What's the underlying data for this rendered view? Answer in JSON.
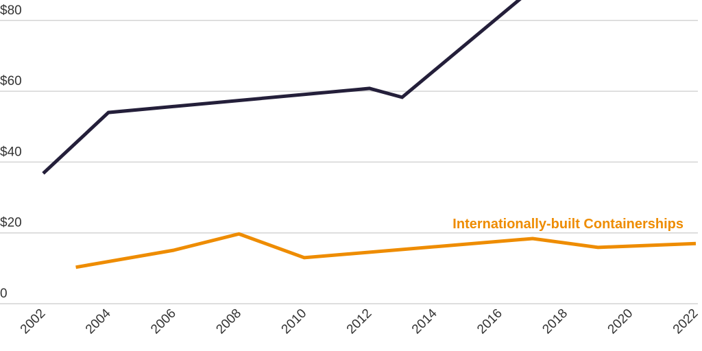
{
  "chart_data": {
    "type": "line",
    "title": "",
    "xlabel": "",
    "ylabel": "",
    "xlim": [
      2002,
      2022
    ],
    "ylim": [
      0,
      85
    ],
    "grid": true,
    "y_ticks": [
      0,
      20,
      40,
      60,
      80
    ],
    "y_tick_labels": [
      "0",
      "$20",
      "$40",
      "$60",
      "$80"
    ],
    "x_ticks": [
      2002,
      2004,
      2006,
      2008,
      2010,
      2012,
      2014,
      2016,
      2018,
      2020,
      2022
    ],
    "x_tick_labels": [
      "2002",
      "2004",
      "2006",
      "2008",
      "2010",
      "2012",
      "2014",
      "2016",
      "2018",
      "2020",
      "2022"
    ],
    "series": [
      {
        "color": "#241f3a",
        "points": [
          [
            2002,
            36.8
          ],
          [
            2004,
            54
          ],
          [
            2012,
            60.8
          ],
          [
            2013,
            58.3
          ],
          [
            2017,
            89
          ]
        ]
      },
      {
        "name": "Internationally-built Containerships",
        "color": "#ee8c00",
        "points": [
          [
            2003,
            10.3
          ],
          [
            2006,
            15.1
          ],
          [
            2008,
            19.7
          ],
          [
            2010,
            13.0
          ],
          [
            2017,
            18.4
          ],
          [
            2019,
            15.9
          ],
          [
            2022,
            17.0
          ]
        ]
      }
    ]
  }
}
